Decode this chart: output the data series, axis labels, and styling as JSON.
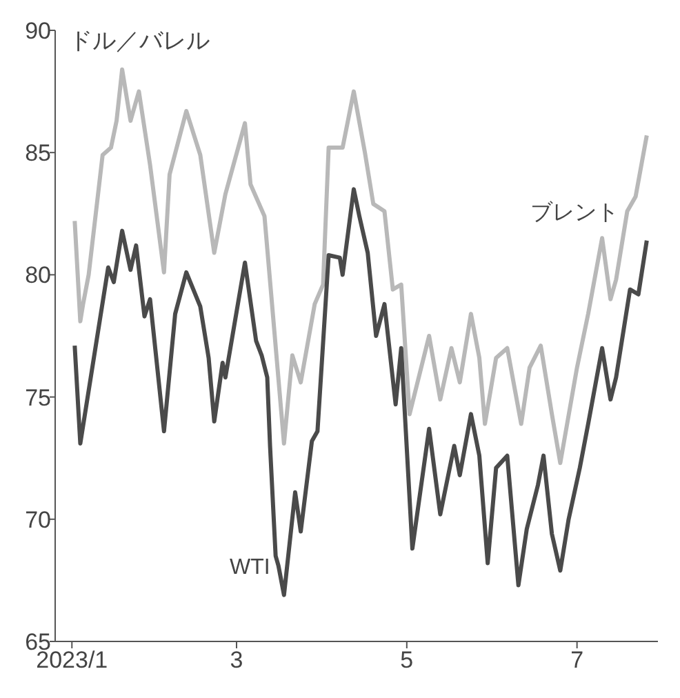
{
  "chart_data": {
    "type": "line",
    "ylabel": "ドル／バレル",
    "xlim": [
      "2022-12-26",
      "2023-07-30"
    ],
    "xticks": [
      {
        "value": "2023-01-01",
        "label": "2023/1"
      },
      {
        "value": "2023-03-01",
        "label": "3"
      },
      {
        "value": "2023-05-01",
        "label": "5"
      },
      {
        "value": "2023-07-01",
        "label": "7"
      }
    ],
    "ylim": [
      65,
      90
    ],
    "yticks": [
      65,
      70,
      75,
      80,
      85,
      90
    ],
    "grid": false,
    "marker": "none",
    "line_style": "solid",
    "series": [
      {
        "name": "ブレント",
        "color": "#b8b8b8",
        "x": [
          "2023-01-02",
          "2023-01-04",
          "2023-01-05",
          "2023-01-07",
          "2023-01-12",
          "2023-01-15",
          "2023-01-17",
          "2023-01-19",
          "2023-01-22",
          "2023-01-25",
          "2023-01-29",
          "2023-02-03",
          "2023-02-05",
          "2023-02-11",
          "2023-02-16",
          "2023-02-21",
          "2023-02-25",
          "2023-03-04",
          "2023-03-06",
          "2023-03-11",
          "2023-03-18",
          "2023-03-21",
          "2023-03-24",
          "2023-03-29",
          "2023-04-01",
          "2023-04-03",
          "2023-04-08",
          "2023-04-12",
          "2023-04-16",
          "2023-04-19",
          "2023-04-23",
          "2023-04-26",
          "2023-04-29",
          "2023-05-02",
          "2023-05-09",
          "2023-05-13",
          "2023-05-17",
          "2023-05-20",
          "2023-05-24",
          "2023-05-27",
          "2023-05-29",
          "2023-06-02",
          "2023-06-06",
          "2023-06-11",
          "2023-06-14",
          "2023-06-18",
          "2023-06-22",
          "2023-06-25",
          "2023-07-01",
          "2023-07-05",
          "2023-07-10",
          "2023-07-13",
          "2023-07-15",
          "2023-07-19",
          "2023-07-22",
          "2023-07-26"
        ],
        "values": [
          82.2,
          78.1,
          78.8,
          80.0,
          84.9,
          85.2,
          86.3,
          88.4,
          86.3,
          87.5,
          84.5,
          80.1,
          84.1,
          86.7,
          84.9,
          80.9,
          83.3,
          86.2,
          83.7,
          82.4,
          73.1,
          76.7,
          75.6,
          78.8,
          79.6,
          85.2,
          85.2,
          87.5,
          85.0,
          82.9,
          82.6,
          79.4,
          79.6,
          74.3,
          77.5,
          74.9,
          77.0,
          75.6,
          78.4,
          76.6,
          73.9,
          76.6,
          77.0,
          73.9,
          76.2,
          77.1,
          74.3,
          72.3,
          76.2,
          78.4,
          81.5,
          79.0,
          79.8,
          82.6,
          83.2,
          85.7
        ]
      },
      {
        "name": "WTI",
        "color": "#4a4a4a",
        "x": [
          "2023-01-02",
          "2023-01-04",
          "2023-01-14",
          "2023-01-16",
          "2023-01-19",
          "2023-01-22",
          "2023-01-24",
          "2023-01-27",
          "2023-01-29",
          "2023-02-03",
          "2023-02-07",
          "2023-02-11",
          "2023-02-16",
          "2023-02-19",
          "2023-02-21",
          "2023-02-24",
          "2023-02-25",
          "2023-03-04",
          "2023-03-08",
          "2023-03-10",
          "2023-03-12",
          "2023-03-13",
          "2023-03-15",
          "2023-03-16",
          "2023-03-18",
          "2023-03-22",
          "2023-03-24",
          "2023-03-28",
          "2023-03-30",
          "2023-04-03",
          "2023-04-07",
          "2023-04-08",
          "2023-04-12",
          "2023-04-14",
          "2023-04-17",
          "2023-04-20",
          "2023-04-23",
          "2023-04-27",
          "2023-04-29",
          "2023-05-03",
          "2023-05-09",
          "2023-05-13",
          "2023-05-18",
          "2023-05-20",
          "2023-05-24",
          "2023-05-27",
          "2023-05-30",
          "2023-06-02",
          "2023-06-06",
          "2023-06-10",
          "2023-06-13",
          "2023-06-17",
          "2023-06-19",
          "2023-06-22",
          "2023-06-25",
          "2023-06-28",
          "2023-07-02",
          "2023-07-05",
          "2023-07-10",
          "2023-07-13",
          "2023-07-15",
          "2023-07-20",
          "2023-07-23",
          "2023-07-26"
        ],
        "values": [
          77.1,
          73.1,
          80.3,
          79.7,
          81.8,
          80.2,
          81.2,
          78.3,
          79.0,
          73.6,
          78.4,
          80.1,
          78.7,
          76.6,
          74.0,
          76.4,
          75.8,
          80.5,
          77.3,
          76.7,
          75.8,
          73.0,
          68.5,
          68.1,
          66.9,
          71.1,
          69.5,
          73.2,
          73.6,
          80.8,
          80.7,
          80.0,
          83.5,
          82.4,
          80.9,
          77.5,
          78.8,
          74.7,
          77.0,
          68.8,
          73.7,
          70.2,
          73.0,
          71.8,
          74.3,
          72.6,
          68.2,
          72.1,
          72.6,
          67.3,
          69.6,
          71.4,
          72.6,
          69.4,
          67.9,
          70.0,
          72.1,
          73.9,
          77.0,
          74.9,
          75.8,
          79.4,
          79.2,
          81.4
        ]
      }
    ]
  }
}
